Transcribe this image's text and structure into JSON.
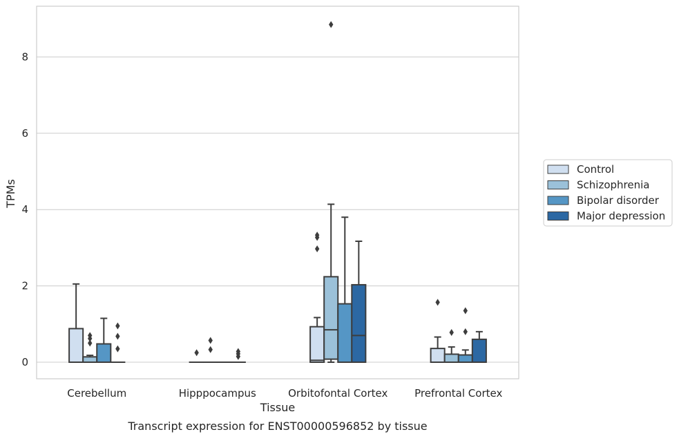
{
  "chart_data": {
    "type": "box",
    "title": "",
    "caption": "Transcript expression for ENST00000596852 by tissue",
    "xlabel": "Tissue",
    "ylabel": "TPMs",
    "ylim": [
      -0.42,
      9.3
    ],
    "yticks": [
      0,
      2,
      4,
      6,
      8
    ],
    "grid": "horizontal",
    "legend_position": "right",
    "categories": [
      "Cerebellum",
      "Hipppocampus",
      "Orbitofontal Cortex",
      "Prefrontal Cortex"
    ],
    "series": [
      {
        "name": "Control",
        "color": "#d0dff0",
        "boxes": [
          {
            "whislo": 0,
            "q1": 0,
            "med": 0,
            "q3": 0.88,
            "whishi": 2.05,
            "fliers": []
          },
          {
            "whislo": 0,
            "q1": 0,
            "med": 0,
            "q3": 0,
            "whishi": 0,
            "fliers": [
              0.25
            ]
          },
          {
            "whislo": 0,
            "q1": 0,
            "med": 0.05,
            "q3": 0.93,
            "whishi": 1.17,
            "fliers": [
              2.97,
              3.27,
              3.33
            ]
          },
          {
            "whislo": 0,
            "q1": 0,
            "med": 0,
            "q3": 0.36,
            "whishi": 0.66,
            "fliers": [
              1.57
            ]
          }
        ]
      },
      {
        "name": "Schizophrenia",
        "color": "#9bc1d9",
        "boxes": [
          {
            "whislo": 0,
            "q1": 0,
            "med": 0,
            "q3": 0.14,
            "whishi": 0.18,
            "fliers": [
              0.5,
              0.62,
              0.7
            ]
          },
          {
            "whislo": 0,
            "q1": 0,
            "med": 0,
            "q3": 0,
            "whishi": 0,
            "fliers": [
              0.33,
              0.57
            ]
          },
          {
            "whislo": 0,
            "q1": 0.08,
            "med": 0.85,
            "q3": 2.24,
            "whishi": 4.14,
            "fliers": [
              8.85
            ]
          },
          {
            "whislo": 0,
            "q1": 0,
            "med": 0,
            "q3": 0.21,
            "whishi": 0.4,
            "fliers": [
              0.78
            ]
          }
        ]
      },
      {
        "name": "Bipolar disorder",
        "color": "#5596c5",
        "boxes": [
          {
            "whislo": 0,
            "q1": 0,
            "med": 0,
            "q3": 0.48,
            "whishi": 1.15,
            "fliers": []
          },
          {
            "whislo": 0,
            "q1": 0,
            "med": 0,
            "q3": 0,
            "whishi": 0,
            "fliers": []
          },
          {
            "whislo": 0,
            "q1": 0,
            "med": 0,
            "q3": 1.53,
            "whishi": 3.8,
            "fliers": []
          },
          {
            "whislo": 0,
            "q1": 0,
            "med": 0,
            "q3": 0.19,
            "whishi": 0.32,
            "fliers": [
              0.8,
              1.35
            ]
          }
        ]
      },
      {
        "name": "Major depression",
        "color": "#2c68a3",
        "boxes": [
          {
            "whislo": 0,
            "q1": 0,
            "med": 0,
            "q3": 0,
            "whishi": 0,
            "fliers": [
              0.35,
              0.68,
              0.95
            ]
          },
          {
            "whislo": 0,
            "q1": 0,
            "med": 0,
            "q3": 0,
            "whishi": 0,
            "fliers": [
              0.15,
              0.22,
              0.28
            ]
          },
          {
            "whislo": 0,
            "q1": 0,
            "med": 0.7,
            "q3": 2.03,
            "whishi": 3.17,
            "fliers": []
          },
          {
            "whislo": 0,
            "q1": 0,
            "med": 0,
            "q3": 0.6,
            "whishi": 0.8,
            "fliers": []
          }
        ]
      }
    ]
  }
}
